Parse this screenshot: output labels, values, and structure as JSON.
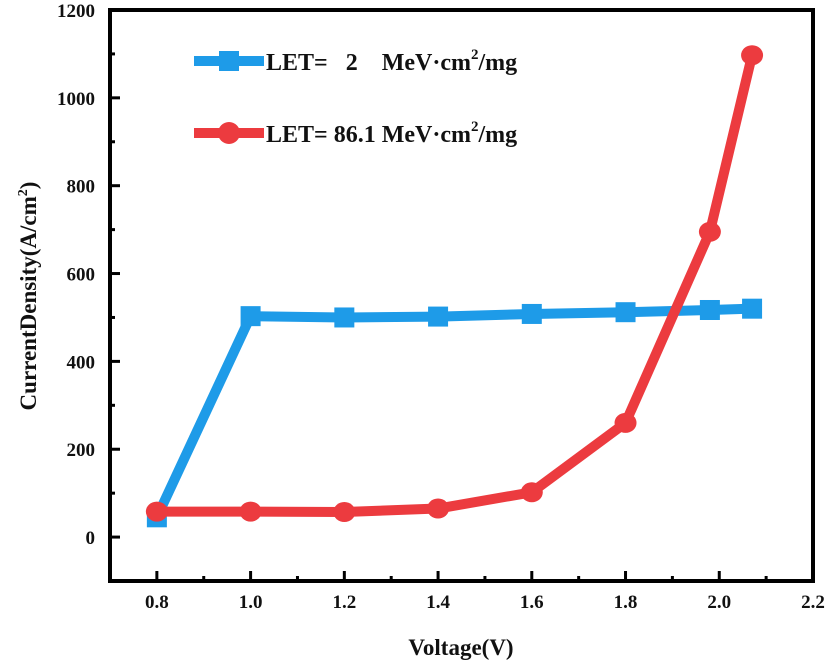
{
  "chart_data": {
    "type": "line",
    "title": "",
    "xlabel": "Voltage(V)",
    "ylabel": "CurrentDensity(A/cm²)",
    "ylabel_parts": {
      "main": "CurrentDensity(A/cm",
      "sup": "2",
      "end": ")"
    },
    "xlim": [
      0.7,
      2.2
    ],
    "ylim": [
      -100,
      1200
    ],
    "xticks": [
      "0.8",
      "1.0",
      "1.2",
      "1.4",
      "1.6",
      "1.8",
      "2.0",
      "2.2"
    ],
    "yticks": [
      "0",
      "200",
      "400",
      "600",
      "800",
      "1000",
      "1200"
    ],
    "grid": false,
    "legend_position": "top-left",
    "series": [
      {
        "name": "LET=   2    MeV·cm²/mg",
        "legend_parts": {
          "main": "LET=   2    MeV·cm",
          "sup": "2",
          "end": "/mg"
        },
        "color": "#1E9BE8",
        "marker": "square",
        "x": [
          0.8,
          1.0,
          1.2,
          1.4,
          1.6,
          1.8,
          1.98,
          2.07
        ],
        "y": [
          45,
          503,
          500,
          502,
          508,
          512,
          517,
          520
        ]
      },
      {
        "name": "LET= 86.1 MeV·cm²/mg",
        "legend_parts": {
          "main": "LET= 86.1 MeV·cm",
          "sup": "2",
          "end": "/mg"
        },
        "color": "#EC3B3F",
        "marker": "circle",
        "x": [
          0.8,
          1.0,
          1.2,
          1.4,
          1.6,
          1.8,
          1.98,
          2.07
        ],
        "y": [
          58,
          58,
          57,
          65,
          102,
          260,
          695,
          1097
        ]
      }
    ]
  }
}
